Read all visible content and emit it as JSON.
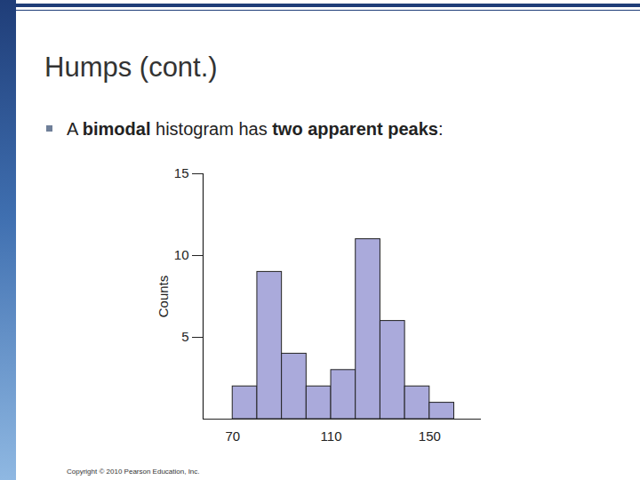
{
  "slide": {
    "title": "Humps (cont.)",
    "bullet": [
      {
        "text": "A "
      },
      {
        "text": "bimodal",
        "bold": true
      },
      {
        "text": " histogram has "
      },
      {
        "text": "two apparent peaks",
        "bold": true
      },
      {
        "text": ":"
      }
    ],
    "copyright": "Copyright © 2010 Pearson Education, Inc."
  },
  "chart_data": {
    "type": "histogram",
    "y_label": "Counts",
    "bins": [
      70,
      80,
      90,
      100,
      110,
      120,
      130,
      140,
      150,
      160
    ],
    "values": [
      2,
      9,
      4,
      2,
      3,
      11,
      6,
      2,
      1
    ],
    "color": "#aaaadb",
    "xlim": [
      58,
      171
    ],
    "xticks": [
      70,
      110,
      150
    ],
    "ylim": [
      0,
      15
    ],
    "yticks": [
      5,
      10,
      15
    ],
    "grid": false
  }
}
